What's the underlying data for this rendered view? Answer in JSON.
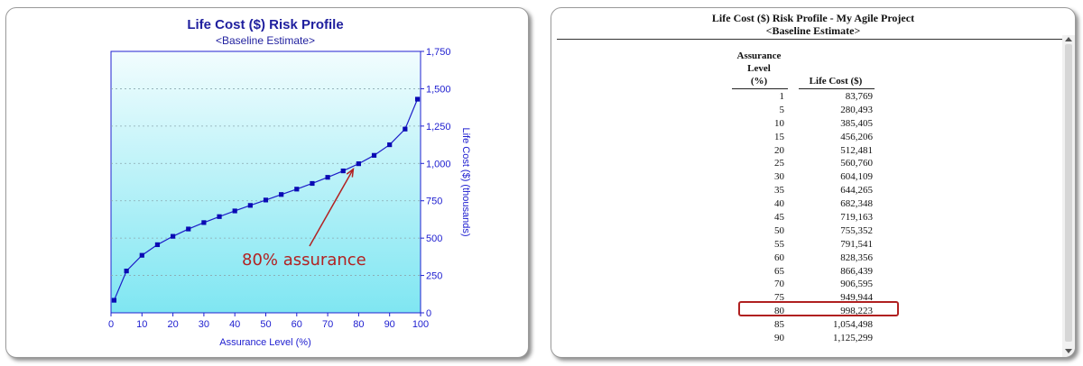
{
  "chart_data": {
    "type": "line",
    "title": "Life Cost ($) Risk Profile",
    "subtitle": "<Baseline Estimate>",
    "xlabel": "Assurance Level (%)",
    "ylabel": "Life Cost ($) (thousands)",
    "xlim": [
      0,
      100
    ],
    "ylim": [
      0,
      1750
    ],
    "xticks": [
      "0",
      "10",
      "20",
      "30",
      "40",
      "50",
      "60",
      "70",
      "80",
      "90",
      "100"
    ],
    "yticks": [
      "0",
      "250",
      "500",
      "750",
      "1,000",
      "1,250",
      "1,500",
      "1,750"
    ],
    "y_axis_side": "right",
    "grid": true,
    "series": [
      {
        "x": [
          1,
          5,
          10,
          15,
          20,
          25,
          30,
          35,
          40,
          45,
          50,
          55,
          60,
          65,
          70,
          75,
          80,
          85,
          90,
          95,
          99
        ],
        "y": [
          84,
          280,
          385,
          456,
          512,
          561,
          604,
          644,
          682,
          719,
          755,
          792,
          828,
          866,
          907,
          950,
          998,
          1054,
          1125,
          1230,
          1430
        ]
      }
    ],
    "annotation": {
      "text": "80% assurance",
      "target_x": 80,
      "target_y": 998
    }
  },
  "colors": {
    "line": "#1c1cc8",
    "marker": "#0a0ab4",
    "axis": "#2020d0",
    "plot_bg_top": "#f2fdfe",
    "plot_bg_bottom": "#7fe6f2",
    "annotation": "#b22222",
    "highlight": "#b02020"
  },
  "report": {
    "title": "Life Cost ($) Risk Profile - My Agile Project",
    "subtitle": "<Baseline Estimate>",
    "col_level_header": "Assurance\nLevel\n(%)",
    "col_cost_header": "Life Cost ($)",
    "rows": [
      {
        "level": "1",
        "cost": "83,769"
      },
      {
        "level": "5",
        "cost": "280,493"
      },
      {
        "level": "10",
        "cost": "385,405"
      },
      {
        "level": "15",
        "cost": "456,206"
      },
      {
        "level": "20",
        "cost": "512,481"
      },
      {
        "level": "25",
        "cost": "560,760"
      },
      {
        "level": "30",
        "cost": "604,109"
      },
      {
        "level": "35",
        "cost": "644,265"
      },
      {
        "level": "40",
        "cost": "682,348"
      },
      {
        "level": "45",
        "cost": "719,163"
      },
      {
        "level": "50",
        "cost": "755,352"
      },
      {
        "level": "55",
        "cost": "791,541"
      },
      {
        "level": "60",
        "cost": "828,356"
      },
      {
        "level": "65",
        "cost": "866,439"
      },
      {
        "level": "70",
        "cost": "906,595"
      },
      {
        "level": "75",
        "cost": "949,944"
      },
      {
        "level": "80",
        "cost": "998,223"
      },
      {
        "level": "85",
        "cost": "1,054,498"
      },
      {
        "level": "90",
        "cost": "1,125,299"
      }
    ],
    "highlighted_level": "80"
  }
}
